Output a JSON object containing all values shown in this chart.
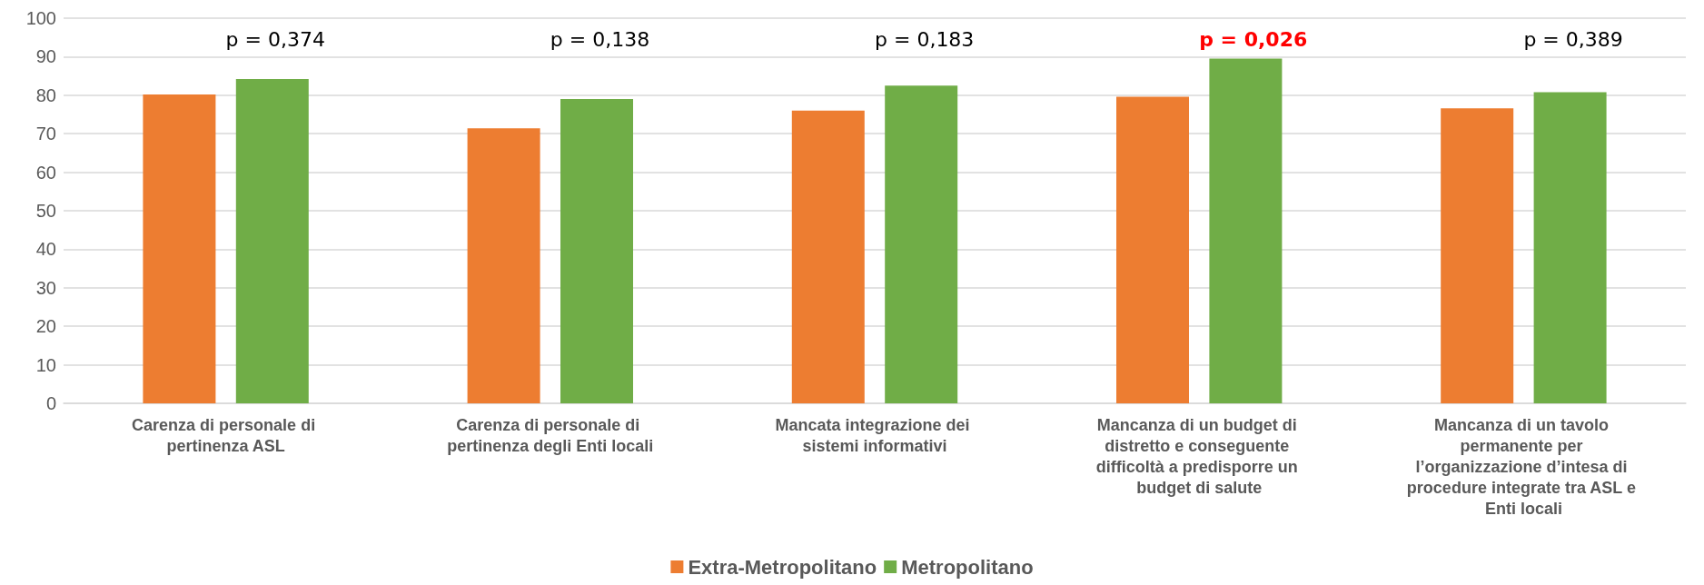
{
  "chart_data": {
    "type": "bar",
    "categories": [
      "Carenza di personale di pertinenza ASL",
      "Carenza di personale di pertinenza degli Enti locali",
      "Mancata integrazione dei sistemi informativi",
      "Mancanza di un budget di distretto e conseguente difficoltà a predisporre un budget di salute",
      "Mancanza di un tavolo permanente per l’organizzazione d’intesa di procedure integrate tra ASL e Enti locali"
    ],
    "series": [
      {
        "name": "Extra-Metropolitano",
        "color": "#ed7d31",
        "values": [
          80.2,
          71.4,
          76.0,
          79.6,
          76.6
        ]
      },
      {
        "name": "Metropolitano",
        "color": "#70ad47",
        "values": [
          84.2,
          79.0,
          82.5,
          89.5,
          80.8
        ]
      }
    ],
    "annotations": [
      "p = 0,374",
      "p = 0,138",
      "p = 0,183",
      "p = 0,026",
      "p = 0,389"
    ],
    "ylim": [
      0,
      100
    ],
    "yticks": [
      0,
      10,
      20,
      30,
      40,
      50,
      60,
      70,
      80,
      90,
      100
    ],
    "grid": "y",
    "legend": "bottom"
  }
}
